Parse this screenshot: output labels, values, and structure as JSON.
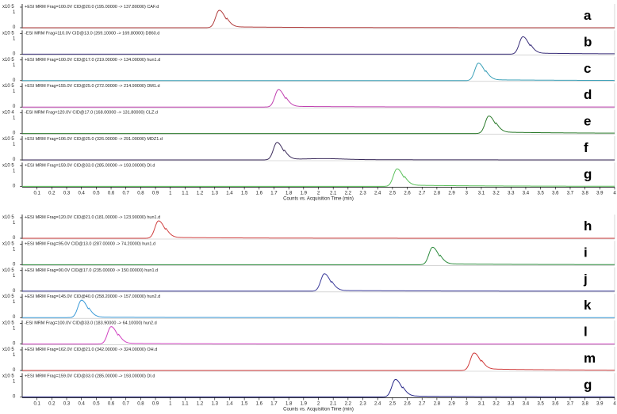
{
  "chart_data": [
    {
      "type": "line",
      "xlabel": "Counts vs. Acquisition Time (min)",
      "xlim": [
        0,
        4
      ],
      "x_ticks": [
        "0.1",
        "0.2",
        "0.3",
        "0.4",
        "0.5",
        "0.6",
        "0.7",
        "0.8",
        "0.9",
        "1",
        "1.1",
        "1.2",
        "1.3",
        "1.4",
        "1.5",
        "1.6",
        "1.7",
        "1.8",
        "1.9",
        "2",
        "2.1",
        "2.2",
        "2.3",
        "2.4",
        "2.5",
        "2.6",
        "2.7",
        "2.8",
        "2.9",
        "3",
        "3.1",
        "3.2",
        "3.3",
        "3.4",
        "3.5",
        "3.6",
        "3.7",
        "3.8",
        "3.9",
        "4"
      ],
      "traces": [
        {
          "title": "+ESI MRM Frag=100.0V CID@20.0 (195.00000 -> 137.80000) CAF.d",
          "scale": "x10 5",
          "ytick_top": "1",
          "ytick_bottom": "0",
          "letter": "a",
          "color": "#b03a3a",
          "peak_time": 1.33,
          "tail_level": 0.05,
          "secondary": []
        },
        {
          "title": "-ESI MRM Frag=110.0V CID@13.0 (269.10000 -> 169.80000) D860.d",
          "scale": "x10 5",
          "ytick_top": "1",
          "ytick_bottom": "0",
          "letter": "b",
          "color": "#3a2f7a",
          "peak_time": 3.38,
          "tail_level": 0.06,
          "secondary": []
        },
        {
          "title": "+ESI MRM Frag=100.0V CID@17.0 (219.00000 -> 134.00000) hun1.d",
          "scale": "x10 5",
          "ytick_top": "1",
          "ytick_bottom": "0",
          "letter": "c",
          "color": "#3aa0b8",
          "peak_time": 3.08,
          "tail_level": 0.05,
          "secondary": []
        },
        {
          "title": "+ESI MRM Frag=155.0V CID@25.0 (272.00000 -> 214.90000) DM1.d",
          "scale": "x10 5",
          "ytick_top": "1",
          "ytick_bottom": "0",
          "letter": "d",
          "color": "#c040b0",
          "peak_time": 1.73,
          "tail_level": 0.04,
          "secondary": []
        },
        {
          "title": "-ESI MRM Frag=120.0V CID@17.0 (168.00000 -> 131.80000) CLZ.d",
          "scale": "x10 4",
          "ytick_top": "1",
          "ytick_bottom": "0",
          "letter": "e",
          "color": "#2a7a2a",
          "peak_time": 3.15,
          "tail_level": 0.08,
          "secondary": []
        },
        {
          "title": "+ESI MRM Frag=106.0V CID@25.0 (326.00000 -> 291.00000) MDZ1.d",
          "scale": "x10 5",
          "ytick_top": "1",
          "ytick_bottom": "0",
          "letter": "f",
          "color": "#3a2a5a",
          "peak_time": 1.72,
          "tail_level": 0.04,
          "secondary": [
            2.05
          ]
        },
        {
          "title": "+ESI MRM Frag=159.0V CID@33.0 (285.00000 -> 193.00000) DI.d",
          "scale": "x10 5",
          "ytick_top": "1",
          "ytick_bottom": "0",
          "letter": "g",
          "color": "#5ac05a",
          "peak_time": 2.53,
          "tail_level": 0.07,
          "secondary": []
        }
      ]
    },
    {
      "type": "line",
      "xlabel": "Counts vs. Acquisition Time (min)",
      "xlim": [
        0,
        4
      ],
      "x_ticks": [
        "0.1",
        "0.2",
        "0.3",
        "0.4",
        "0.5",
        "0.6",
        "0.7",
        "0.8",
        "0.9",
        "1",
        "1.1",
        "1.2",
        "1.3",
        "1.4",
        "1.5",
        "1.6",
        "1.7",
        "1.8",
        "1.9",
        "2",
        "2.1",
        "2.2",
        "2.3",
        "2.4",
        "2.5",
        "2.6",
        "2.7",
        "2.8",
        "2.9",
        "3",
        "3.1",
        "3.2",
        "3.3",
        "3.4",
        "3.5",
        "3.6",
        "3.7",
        "3.8",
        "3.9",
        "4"
      ],
      "traces": [
        {
          "title": "+ESI MRM Frag=120.0V CID@21.0 (181.00000 -> 123.90000) hun1.d",
          "scale": "x10 5",
          "ytick_top": "1",
          "ytick_bottom": "0",
          "letter": "h",
          "color": "#d04040",
          "peak_time": 0.92,
          "tail_level": 0.05,
          "secondary": []
        },
        {
          "title": "+ESI MRM Frag=95.0V CID@13.0 (287.00000 -> 74.20000) hun1.d",
          "scale": "x10 5",
          "ytick_top": "1",
          "ytick_bottom": "0",
          "letter": "i",
          "color": "#2a8a3a",
          "peak_time": 2.77,
          "tail_level": 0.05,
          "secondary": []
        },
        {
          "title": "+ESI MRM Frag=90.0V CID@17.0 (235.00000 -> 150.00000) hun1.d",
          "scale": "x10 5",
          "ytick_top": "1",
          "ytick_bottom": "0",
          "letter": "j",
          "color": "#3a3a9a",
          "peak_time": 2.04,
          "tail_level": 0.04,
          "secondary": []
        },
        {
          "title": "+ESI MRM Frag=145.0V CID@40.0 (258.20000 -> 157.00000) hun2.d",
          "scale": "x10 5",
          "ytick_top": "1",
          "ytick_bottom": "0",
          "letter": "k",
          "color": "#3a9ad8",
          "peak_time": 0.4,
          "tail_level": 0.03,
          "secondary": []
        },
        {
          "title": "-ESI MRM Frag=100.0V CID@33.0 (183.90000 -> 64.10000) hun2.d",
          "scale": "x10 5",
          "ytick_top": "1",
          "ytick_bottom": "0",
          "letter": "l",
          "color": "#d040c0",
          "peak_time": 0.6,
          "tail_level": 0.04,
          "secondary": []
        },
        {
          "title": "+ESI MRM Frag=162.0V CID@21.0 (342.00000 -> 324.00000) OH.d",
          "scale": "x10 5",
          "ytick_top": "1",
          "ytick_bottom": "0",
          "letter": "m",
          "color": "#d03a3a",
          "peak_time": 3.05,
          "tail_level": 0.09,
          "secondary": []
        },
        {
          "title": "+ESI MRM Frag=159.0V CID@33.0 (285.00000 -> 193.00000) DI.d",
          "scale": "x10 5",
          "ytick_top": "1",
          "ytick_bottom": "0",
          "letter": "g",
          "color": "#2a2a8a",
          "peak_time": 2.52,
          "tail_level": 0.05,
          "secondary": []
        }
      ]
    }
  ]
}
